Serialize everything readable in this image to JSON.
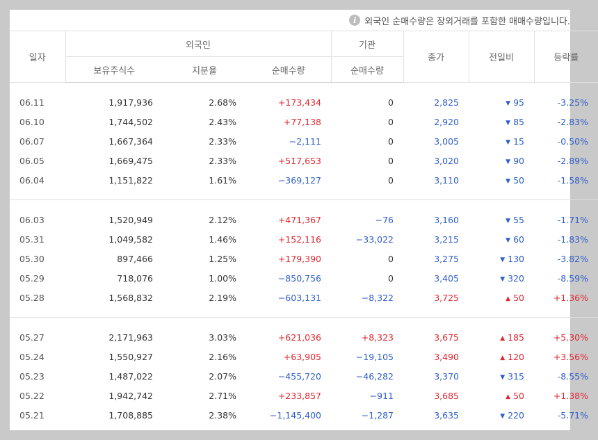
{
  "note": "외국인 순매수량은 장외거래를 포함한 매매수량입니다.",
  "headers": {
    "date": "일자",
    "foreign": "외국인",
    "holdings": "보유주식수",
    "ratio": "지분율",
    "foreign_net": "순매수량",
    "institution": "기관",
    "inst_net": "순매수량",
    "close": "종가",
    "change": "전일비",
    "rate": "등락률"
  },
  "colors": {
    "up": "#e0262f",
    "down": "#2d5ec9"
  },
  "groups": [
    [
      {
        "date": "06.11",
        "holdings": "1,917,936",
        "ratio": "2.68%",
        "fnet": "+173,434",
        "fdir": "up",
        "inet": "0",
        "idir": "flat",
        "close": "2,825",
        "cdir": "down",
        "change": "95",
        "rate": "-3.25%"
      },
      {
        "date": "06.10",
        "holdings": "1,744,502",
        "ratio": "2.43%",
        "fnet": "+77,138",
        "fdir": "up",
        "inet": "0",
        "idir": "flat",
        "close": "2,920",
        "cdir": "down",
        "change": "85",
        "rate": "-2.83%"
      },
      {
        "date": "06.07",
        "holdings": "1,667,364",
        "ratio": "2.33%",
        "fnet": "−2,111",
        "fdir": "down",
        "inet": "0",
        "idir": "flat",
        "close": "3,005",
        "cdir": "down",
        "change": "15",
        "rate": "-0.50%"
      },
      {
        "date": "06.05",
        "holdings": "1,669,475",
        "ratio": "2.33%",
        "fnet": "+517,653",
        "fdir": "up",
        "inet": "0",
        "idir": "flat",
        "close": "3,020",
        "cdir": "down",
        "change": "90",
        "rate": "-2.89%"
      },
      {
        "date": "06.04",
        "holdings": "1,151,822",
        "ratio": "1.61%",
        "fnet": "−369,127",
        "fdir": "down",
        "inet": "0",
        "idir": "flat",
        "close": "3,110",
        "cdir": "down",
        "change": "50",
        "rate": "-1.58%"
      }
    ],
    [
      {
        "date": "06.03",
        "holdings": "1,520,949",
        "ratio": "2.12%",
        "fnet": "+471,367",
        "fdir": "up",
        "inet": "−76",
        "idir": "down",
        "close": "3,160",
        "cdir": "down",
        "change": "55",
        "rate": "-1.71%"
      },
      {
        "date": "05.31",
        "holdings": "1,049,582",
        "ratio": "1.46%",
        "fnet": "+152,116",
        "fdir": "up",
        "inet": "−33,022",
        "idir": "down",
        "close": "3,215",
        "cdir": "down",
        "change": "60",
        "rate": "-1.83%"
      },
      {
        "date": "05.30",
        "holdings": "897,466",
        "ratio": "1.25%",
        "fnet": "+179,390",
        "fdir": "up",
        "inet": "0",
        "idir": "flat",
        "close": "3,275",
        "cdir": "down",
        "change": "130",
        "rate": "-3.82%"
      },
      {
        "date": "05.29",
        "holdings": "718,076",
        "ratio": "1.00%",
        "fnet": "−850,756",
        "fdir": "down",
        "inet": "0",
        "idir": "flat",
        "close": "3,405",
        "cdir": "down",
        "change": "320",
        "rate": "-8.59%"
      },
      {
        "date": "05.28",
        "holdings": "1,568,832",
        "ratio": "2.19%",
        "fnet": "−603,131",
        "fdir": "down",
        "inet": "−8,322",
        "idir": "down",
        "close": "3,725",
        "cdir": "up",
        "change": "50",
        "rate": "+1.36%"
      }
    ],
    [
      {
        "date": "05.27",
        "holdings": "2,171,963",
        "ratio": "3.03%",
        "fnet": "+621,036",
        "fdir": "up",
        "inet": "+8,323",
        "idir": "up",
        "close": "3,675",
        "cdir": "up",
        "change": "185",
        "rate": "+5.30%"
      },
      {
        "date": "05.24",
        "holdings": "1,550,927",
        "ratio": "2.16%",
        "fnet": "+63,905",
        "fdir": "up",
        "inet": "−19,105",
        "idir": "down",
        "close": "3,490",
        "cdir": "up",
        "change": "120",
        "rate": "+3.56%"
      },
      {
        "date": "05.23",
        "holdings": "1,487,022",
        "ratio": "2.07%",
        "fnet": "−455,720",
        "fdir": "down",
        "inet": "−46,282",
        "idir": "down",
        "close": "3,370",
        "cdir": "down",
        "change": "315",
        "rate": "-8.55%"
      },
      {
        "date": "05.22",
        "holdings": "1,942,742",
        "ratio": "2.71%",
        "fnet": "+233,857",
        "fdir": "up",
        "inet": "−911",
        "idir": "down",
        "close": "3,685",
        "cdir": "up",
        "change": "50",
        "rate": "+1.38%"
      },
      {
        "date": "05.21",
        "holdings": "1,708,885",
        "ratio": "2.38%",
        "fnet": "−1,145,400",
        "fdir": "down",
        "inet": "−1,287",
        "idir": "down",
        "close": "3,635",
        "cdir": "down",
        "change": "220",
        "rate": "-5.71%"
      }
    ]
  ]
}
